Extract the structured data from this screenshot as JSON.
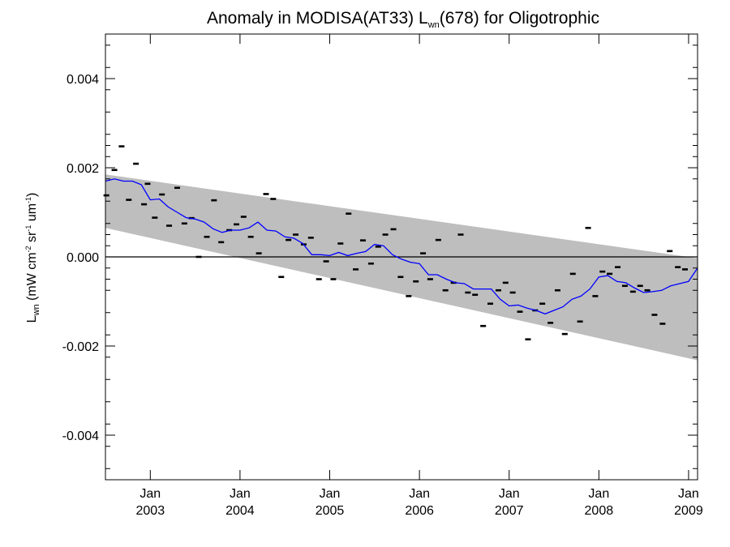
{
  "chart_data": {
    "type": "scatter",
    "title": {
      "pre": "Anomaly in MODISA(AT33) L",
      "sub": "wn",
      "post": "(678) for Oligotrophic"
    },
    "ylabel": {
      "base": "L",
      "sub": "wn",
      "units_pre": " (mW cm",
      "sup1": "-2",
      "mid1": " sr",
      "sup2": "-1",
      "mid2": " um",
      "sup3": "-1",
      "end": ")"
    },
    "xlim": [
      2002.5,
      2009.1
    ],
    "ylim": [
      -0.005,
      0.005
    ],
    "y_ticks": [
      {
        "value": 0.004,
        "label": "0.004"
      },
      {
        "value": 0.002,
        "label": "0.002"
      },
      {
        "value": 0.0,
        "label": "0.000"
      },
      {
        "value": -0.002,
        "label": "-0.002"
      },
      {
        "value": -0.004,
        "label": "-0.004"
      }
    ],
    "x_ticks": [
      {
        "value": 2003.0,
        "month": "Jan",
        "year": "2003"
      },
      {
        "value": 2004.0,
        "month": "Jan",
        "year": "2004"
      },
      {
        "value": 2005.0,
        "month": "Jan",
        "year": "2005"
      },
      {
        "value": 2006.0,
        "month": "Jan",
        "year": "2006"
      },
      {
        "value": 2007.0,
        "month": "Jan",
        "year": "2007"
      },
      {
        "value": 2008.0,
        "month": "Jan",
        "year": "2008"
      },
      {
        "value": 2009.0,
        "month": "Jan",
        "year": "2009"
      }
    ],
    "zero_line": 0.0,
    "band": {
      "upper": [
        [
          2002.5,
          0.00185
        ],
        [
          2009.1,
          -3e-05
        ]
      ],
      "lower": [
        [
          2002.5,
          0.00065
        ],
        [
          2009.1,
          -0.00232
        ]
      ],
      "color": "#bebebe"
    },
    "points": [
      [
        2002.51,
        0.00138
      ],
      [
        2002.6,
        0.00195
      ],
      [
        2002.68,
        0.00248
      ],
      [
        2002.76,
        0.00128
      ],
      [
        2002.84,
        0.00209
      ],
      [
        2002.93,
        0.00118
      ],
      [
        2002.97,
        0.00164
      ],
      [
        2003.05,
        0.00088
      ],
      [
        2003.13,
        0.0014
      ],
      [
        2003.21,
        0.0007
      ],
      [
        2003.3,
        0.00155
      ],
      [
        2003.38,
        0.00075
      ],
      [
        2003.46,
        0.00087
      ],
      [
        2003.54,
        0.0
      ],
      [
        2003.63,
        0.00045
      ],
      [
        2003.71,
        0.00127
      ],
      [
        2003.79,
        0.00033
      ],
      [
        2003.88,
        0.0006
      ],
      [
        2003.96,
        0.00073
      ],
      [
        2004.04,
        0.0009
      ],
      [
        2004.12,
        0.00045
      ],
      [
        2004.21,
        8e-05
      ],
      [
        2004.29,
        0.00141
      ],
      [
        2004.37,
        0.0013
      ],
      [
        2004.46,
        -0.00045
      ],
      [
        2004.54,
        0.00038
      ],
      [
        2004.62,
        0.0005
      ],
      [
        2004.71,
        0.00028
      ],
      [
        2004.79,
        0.00043
      ],
      [
        2004.88,
        -0.0005
      ],
      [
        2004.96,
        -0.0001
      ],
      [
        2005.04,
        -0.0005
      ],
      [
        2005.12,
        0.0003
      ],
      [
        2005.21,
        0.00097
      ],
      [
        2005.29,
        -0.00028
      ],
      [
        2005.37,
        0.00037
      ],
      [
        2005.46,
        -0.00015
      ],
      [
        2005.54,
        0.00023
      ],
      [
        2005.62,
        0.0005
      ],
      [
        2005.71,
        0.00062
      ],
      [
        2005.79,
        -0.00045
      ],
      [
        2005.88,
        -0.00088
      ],
      [
        2005.96,
        -0.00055
      ],
      [
        2006.04,
        8e-05
      ],
      [
        2006.12,
        -0.0005
      ],
      [
        2006.21,
        0.00038
      ],
      [
        2006.29,
        -0.00075
      ],
      [
        2006.38,
        -0.00058
      ],
      [
        2006.46,
        0.0005
      ],
      [
        2006.54,
        -0.0008
      ],
      [
        2006.62,
        -0.00085
      ],
      [
        2006.71,
        -0.00155
      ],
      [
        2006.79,
        -0.00105
      ],
      [
        2006.88,
        -0.00075
      ],
      [
        2006.96,
        -0.00058
      ],
      [
        2007.04,
        -0.0008
      ],
      [
        2007.12,
        -0.00123
      ],
      [
        2007.21,
        -0.00185
      ],
      [
        2007.29,
        -0.0012
      ],
      [
        2007.37,
        -0.00105
      ],
      [
        2007.46,
        -0.00148
      ],
      [
        2007.54,
        -0.00075
      ],
      [
        2007.62,
        -0.00173
      ],
      [
        2007.71,
        -0.00038
      ],
      [
        2007.79,
        -0.00145
      ],
      [
        2007.88,
        0.00065
      ],
      [
        2007.96,
        -0.00088
      ],
      [
        2008.04,
        -0.00033
      ],
      [
        2008.12,
        -0.00038
      ],
      [
        2008.21,
        -0.00023
      ],
      [
        2008.29,
        -0.00065
      ],
      [
        2008.38,
        -0.00078
      ],
      [
        2008.46,
        -0.00065
      ],
      [
        2008.54,
        -0.00075
      ],
      [
        2008.62,
        -0.0013
      ],
      [
        2008.71,
        -0.0015
      ],
      [
        2008.79,
        0.00013
      ],
      [
        2008.88,
        -0.00023
      ],
      [
        2008.96,
        -0.00028
      ]
    ],
    "line": [
      [
        2002.5,
        0.0017
      ],
      [
        2002.6,
        0.00175
      ],
      [
        2002.7,
        0.0017
      ],
      [
        2002.8,
        0.0017
      ],
      [
        2002.9,
        0.00162
      ],
      [
        2003.0,
        0.00128
      ],
      [
        2003.1,
        0.0013
      ],
      [
        2003.2,
        0.00112
      ],
      [
        2003.3,
        0.001
      ],
      [
        2003.4,
        0.00088
      ],
      [
        2003.5,
        0.00085
      ],
      [
        2003.6,
        0.00078
      ],
      [
        2003.7,
        0.00063
      ],
      [
        2003.8,
        0.00055
      ],
      [
        2003.9,
        0.0006
      ],
      [
        2004.0,
        0.0006
      ],
      [
        2004.1,
        0.00065
      ],
      [
        2004.2,
        0.00078
      ],
      [
        2004.3,
        0.0006
      ],
      [
        2004.4,
        0.00058
      ],
      [
        2004.5,
        0.00045
      ],
      [
        2004.6,
        0.00042
      ],
      [
        2004.7,
        0.0003
      ],
      [
        2004.8,
        5e-05
      ],
      [
        2004.9,
        5e-05
      ],
      [
        2005.0,
        3e-05
      ],
      [
        2005.1,
        0.0001
      ],
      [
        2005.2,
        3e-05
      ],
      [
        2005.3,
        8e-05
      ],
      [
        2005.4,
        0.00012
      ],
      [
        2005.5,
        0.00028
      ],
      [
        2005.6,
        0.00025
      ],
      [
        2005.7,
        5e-05
      ],
      [
        2005.8,
        -5e-05
      ],
      [
        2005.9,
        -0.00012
      ],
      [
        2006.0,
        -0.00015
      ],
      [
        2006.1,
        -0.0004
      ],
      [
        2006.2,
        -0.0004
      ],
      [
        2006.3,
        -0.0005
      ],
      [
        2006.4,
        -0.00058
      ],
      [
        2006.5,
        -0.0006
      ],
      [
        2006.6,
        -0.00072
      ],
      [
        2006.7,
        -0.00072
      ],
      [
        2006.8,
        -0.00072
      ],
      [
        2006.9,
        -0.00095
      ],
      [
        2007.0,
        -0.0011
      ],
      [
        2007.1,
        -0.00108
      ],
      [
        2007.2,
        -0.00115
      ],
      [
        2007.3,
        -0.0012
      ],
      [
        2007.4,
        -0.00128
      ],
      [
        2007.5,
        -0.0012
      ],
      [
        2007.6,
        -0.00112
      ],
      [
        2007.7,
        -0.00095
      ],
      [
        2007.8,
        -0.00088
      ],
      [
        2007.9,
        -0.00072
      ],
      [
        2008.0,
        -0.00045
      ],
      [
        2008.1,
        -0.00042
      ],
      [
        2008.2,
        -0.00055
      ],
      [
        2008.3,
        -0.00058
      ],
      [
        2008.4,
        -0.0007
      ],
      [
        2008.5,
        -0.0008
      ],
      [
        2008.6,
        -0.00078
      ],
      [
        2008.7,
        -0.00075
      ],
      [
        2008.8,
        -0.00065
      ],
      [
        2008.9,
        -0.0006
      ],
      [
        2009.0,
        -0.00055
      ],
      [
        2009.1,
        -0.00025
      ]
    ],
    "line_color": "#0000ff",
    "marker_color": "#000000",
    "grid": false,
    "legend": "none"
  }
}
